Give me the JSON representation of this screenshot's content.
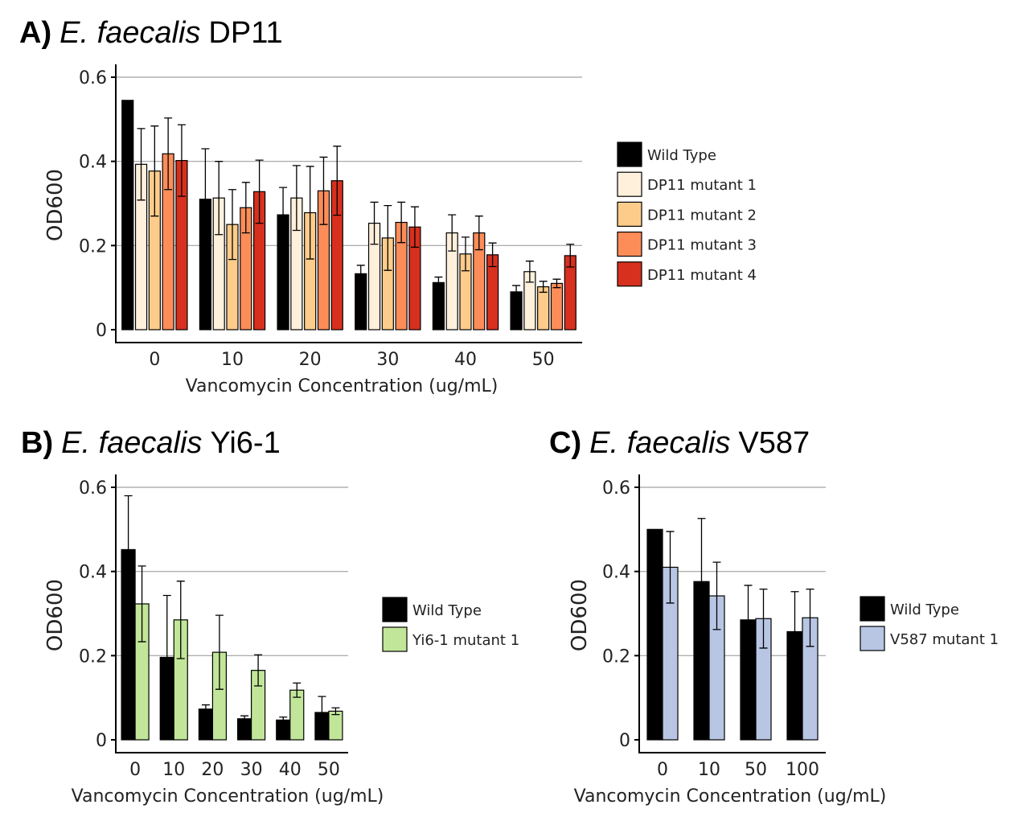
{
  "chart_data": [
    {
      "id": "A",
      "type": "bar",
      "panel_label": "A)",
      "title_species": "E. faecalis",
      "title_strain": "DP11",
      "xlabel": "Vancomycin Concentration (ug/mL)",
      "ylabel": "OD600",
      "ylim": [
        0,
        0.6
      ],
      "yticks": [
        0,
        0.2,
        0.4,
        0.6
      ],
      "ytick_labels": [
        "0",
        "0.2",
        "0.4",
        "0.6"
      ],
      "grid": true,
      "legend_position": "right",
      "categories": [
        "0",
        "10",
        "20",
        "30",
        "40",
        "50"
      ],
      "series": [
        {
          "name": "Wild Type",
          "color": "#000000",
          "values": [
            0.545,
            0.31,
            0.273,
            0.133,
            0.112,
            0.09
          ],
          "errors": [
            0,
            0.12,
            0.065,
            0.02,
            0.013,
            0.015
          ]
        },
        {
          "name": "DP11 mutant 1",
          "color": "#fff0dc",
          "values": [
            0.393,
            0.313,
            0.313,
            0.253,
            0.23,
            0.138
          ],
          "errors": [
            0.085,
            0.087,
            0.077,
            0.05,
            0.043,
            0.025
          ]
        },
        {
          "name": "DP11 mutant 2",
          "color": "#fdcc8a",
          "values": [
            0.377,
            0.25,
            0.278,
            0.218,
            0.18,
            0.102
          ],
          "errors": [
            0.107,
            0.083,
            0.11,
            0.077,
            0.04,
            0.013
          ]
        },
        {
          "name": "DP11 mutant 3",
          "color": "#fc8d59",
          "values": [
            0.418,
            0.29,
            0.33,
            0.255,
            0.23,
            0.11
          ],
          "errors": [
            0.085,
            0.06,
            0.08,
            0.048,
            0.04,
            0.01
          ]
        },
        {
          "name": "DP11 mutant 4",
          "color": "#d7301f",
          "values": [
            0.402,
            0.328,
            0.354,
            0.244,
            0.178,
            0.176
          ],
          "errors": [
            0.085,
            0.075,
            0.082,
            0.048,
            0.028,
            0.027
          ]
        }
      ]
    },
    {
      "id": "B",
      "type": "bar",
      "panel_label": "B)",
      "title_species": "E. faecalis",
      "title_strain": "Yi6-1",
      "xlabel": "Vancomycin Concentration (ug/mL)",
      "ylabel": "OD600",
      "ylim": [
        0,
        0.6
      ],
      "yticks": [
        0,
        0.2,
        0.4,
        0.6
      ],
      "ytick_labels": [
        "0",
        "0.2",
        "0.4",
        "0.6"
      ],
      "grid": true,
      "legend_position": "right",
      "categories": [
        "0",
        "10",
        "20",
        "30",
        "40",
        "50"
      ],
      "series": [
        {
          "name": "Wild Type",
          "color": "#000000",
          "values": [
            0.452,
            0.196,
            0.073,
            0.05,
            0.047,
            0.065
          ],
          "errors": [
            0.128,
            0.147,
            0.01,
            0.007,
            0.007,
            0.038
          ]
        },
        {
          "name": "Yi6-1 mutant 1",
          "color": "#c2e699",
          "values": [
            0.323,
            0.285,
            0.208,
            0.165,
            0.118,
            0.068
          ],
          "errors": [
            0.09,
            0.092,
            0.088,
            0.037,
            0.017,
            0.008
          ]
        }
      ]
    },
    {
      "id": "C",
      "type": "bar",
      "panel_label": "C)",
      "title_species": "E. faecalis",
      "title_strain": "V587",
      "xlabel": "Vancomycin Concentration (ug/mL)",
      "ylabel": "OD600",
      "ylim": [
        0,
        0.6
      ],
      "yticks": [
        0,
        0.2,
        0.4,
        0.6
      ],
      "ytick_labels": [
        "0",
        "0.2",
        "0.4",
        "0.6"
      ],
      "grid": true,
      "legend_position": "right",
      "categories": [
        "0",
        "10",
        "50",
        "100"
      ],
      "series": [
        {
          "name": "Wild Type",
          "color": "#000000",
          "values": [
            0.5,
            0.376,
            0.285,
            0.257
          ],
          "errors": [
            0,
            0.15,
            0.082,
            0.095
          ]
        },
        {
          "name": "V587 mutant 1",
          "color": "#b8c6e4",
          "values": [
            0.41,
            0.342,
            0.288,
            0.29
          ],
          "errors": [
            0.085,
            0.08,
            0.07,
            0.068
          ]
        }
      ]
    }
  ]
}
